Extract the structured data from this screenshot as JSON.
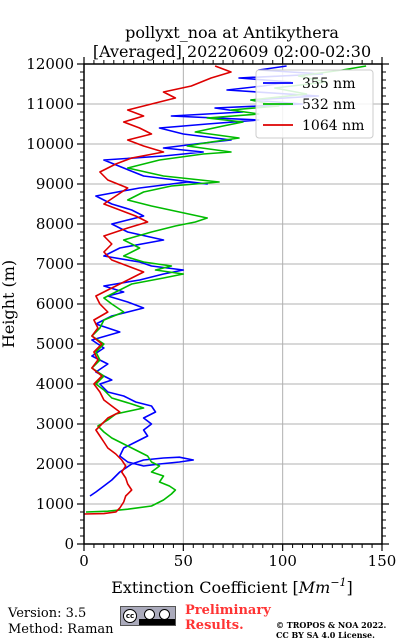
{
  "chart_data": {
    "type": "line",
    "title": [
      "pollyxt_noa at Antikythera",
      "[Averaged] 20220609 02:00-02:30"
    ],
    "xlabel": "Extinction Coefficient [Mm⁻¹]",
    "xlabel_main": "Extinction Coefficient [",
    "xlabel_unit": "Mm",
    "xlabel_exp": "−1",
    "xlabel_close": "]",
    "ylabel": "Height (m)",
    "xlim": [
      0,
      150
    ],
    "ylim": [
      0,
      12000
    ],
    "xticks": [
      0,
      50,
      100,
      150
    ],
    "yticks": [
      0,
      1000,
      2000,
      3000,
      4000,
      5000,
      6000,
      7000,
      8000,
      9000,
      10000,
      11000,
      12000
    ],
    "grid": true,
    "legend_position": "top-right",
    "series": [
      {
        "name": "355 nm",
        "color": "#0000ff",
        "points": [
          [
            3,
            1200
          ],
          [
            6,
            1300
          ],
          [
            10,
            1450
          ],
          [
            14,
            1600
          ],
          [
            18,
            1800
          ],
          [
            24,
            2000
          ],
          [
            30,
            2100
          ],
          [
            40,
            2150
          ],
          [
            48,
            2170
          ],
          [
            55,
            2100
          ],
          [
            48,
            2050
          ],
          [
            38,
            2000
          ],
          [
            30,
            1950
          ],
          [
            22,
            2050
          ],
          [
            18,
            2200
          ],
          [
            20,
            2400
          ],
          [
            26,
            2550
          ],
          [
            32,
            2700
          ],
          [
            30,
            2850
          ],
          [
            34,
            3000
          ],
          [
            30,
            3150
          ],
          [
            36,
            3300
          ],
          [
            34,
            3450
          ],
          [
            26,
            3550
          ],
          [
            20,
            3700
          ],
          [
            12,
            3800
          ],
          [
            8,
            4000
          ],
          [
            14,
            4100
          ],
          [
            6,
            4300
          ],
          [
            12,
            4500
          ],
          [
            4,
            4700
          ],
          [
            10,
            4900
          ],
          [
            4,
            5100
          ],
          [
            18,
            5300
          ],
          [
            6,
            5500
          ],
          [
            14,
            5700
          ],
          [
            30,
            5900
          ],
          [
            22,
            6050
          ],
          [
            12,
            6200
          ],
          [
            20,
            6300
          ],
          [
            10,
            6450
          ],
          [
            28,
            6600
          ],
          [
            40,
            6750
          ],
          [
            50,
            6850
          ],
          [
            34,
            6950
          ],
          [
            28,
            7050
          ],
          [
            10,
            7200
          ],
          [
            18,
            7400
          ],
          [
            40,
            7600
          ],
          [
            22,
            7800
          ],
          [
            14,
            8000
          ],
          [
            30,
            8200
          ],
          [
            24,
            8350
          ],
          [
            14,
            8500
          ],
          [
            6,
            8700
          ],
          [
            28,
            8900
          ],
          [
            52,
            9050
          ],
          [
            62,
            9000
          ],
          [
            30,
            9200
          ],
          [
            20,
            9400
          ],
          [
            10,
            9600
          ],
          [
            40,
            9700
          ],
          [
            60,
            9800
          ],
          [
            40,
            9900
          ],
          [
            56,
            10000
          ],
          [
            74,
            10100
          ],
          [
            50,
            10250
          ],
          [
            38,
            10400
          ],
          [
            62,
            10500
          ],
          [
            88,
            10600
          ],
          [
            44,
            10700
          ],
          [
            80,
            10800
          ],
          [
            66,
            10900
          ],
          [
            110,
            11000
          ],
          [
            84,
            11100
          ],
          [
            118,
            11200
          ],
          [
            72,
            11350
          ],
          [
            90,
            11450
          ],
          [
            104,
            11550
          ],
          [
            78,
            11650
          ],
          [
            120,
            11750
          ],
          [
            88,
            11850
          ],
          [
            102,
            11950
          ]
        ]
      },
      {
        "name": "532 nm",
        "color": "#00bb00",
        "points": [
          [
            1,
            800
          ],
          [
            12,
            820
          ],
          [
            22,
            870
          ],
          [
            34,
            950
          ],
          [
            40,
            1100
          ],
          [
            44,
            1250
          ],
          [
            46,
            1350
          ],
          [
            43,
            1450
          ],
          [
            38,
            1550
          ],
          [
            40,
            1700
          ],
          [
            34,
            1800
          ],
          [
            38,
            1950
          ],
          [
            34,
            2050
          ],
          [
            32,
            2200
          ],
          [
            26,
            2350
          ],
          [
            20,
            2500
          ],
          [
            14,
            2650
          ],
          [
            10,
            2800
          ],
          [
            7,
            2950
          ],
          [
            12,
            3100
          ],
          [
            16,
            3250
          ],
          [
            30,
            3400
          ],
          [
            24,
            3500
          ],
          [
            14,
            3650
          ],
          [
            10,
            3850
          ],
          [
            6,
            4000
          ],
          [
            10,
            4200
          ],
          [
            4,
            4400
          ],
          [
            8,
            4600
          ],
          [
            6,
            4800
          ],
          [
            10,
            5000
          ],
          [
            4,
            5200
          ],
          [
            8,
            5400
          ],
          [
            10,
            5600
          ],
          [
            20,
            5800
          ],
          [
            14,
            6000
          ],
          [
            10,
            6150
          ],
          [
            16,
            6300
          ],
          [
            24,
            6500
          ],
          [
            40,
            6650
          ],
          [
            50,
            6750
          ],
          [
            36,
            6850
          ],
          [
            44,
            6950
          ],
          [
            30,
            7050
          ],
          [
            20,
            7200
          ],
          [
            28,
            7400
          ],
          [
            20,
            7600
          ],
          [
            34,
            7800
          ],
          [
            46,
            7950
          ],
          [
            56,
            8050
          ],
          [
            62,
            8150
          ],
          [
            48,
            8300
          ],
          [
            34,
            8450
          ],
          [
            22,
            8600
          ],
          [
            30,
            8800
          ],
          [
            44,
            8950
          ],
          [
            68,
            9050
          ],
          [
            40,
            9200
          ],
          [
            22,
            9400
          ],
          [
            38,
            9600
          ],
          [
            60,
            9750
          ],
          [
            74,
            9800
          ],
          [
            52,
            9950
          ],
          [
            64,
            10050
          ],
          [
            78,
            10150
          ],
          [
            56,
            10300
          ],
          [
            70,
            10450
          ],
          [
            80,
            10550
          ],
          [
            62,
            10650
          ],
          [
            88,
            10750
          ],
          [
            74,
            10850
          ],
          [
            98,
            10950
          ],
          [
            84,
            11100
          ],
          [
            112,
            11250
          ],
          [
            96,
            11400
          ],
          [
            122,
            11550
          ],
          [
            108,
            11700
          ],
          [
            130,
            11850
          ],
          [
            142,
            11950
          ]
        ]
      },
      {
        "name": "1064 nm",
        "color": "#dd0000",
        "points": [
          [
            0,
            750
          ],
          [
            10,
            760
          ],
          [
            16,
            800
          ],
          [
            18,
            900
          ],
          [
            20,
            1050
          ],
          [
            21,
            1200
          ],
          [
            24,
            1350
          ],
          [
            22,
            1500
          ],
          [
            21,
            1650
          ],
          [
            19,
            1800
          ],
          [
            21,
            1950
          ],
          [
            19,
            2100
          ],
          [
            16,
            2250
          ],
          [
            12,
            2400
          ],
          [
            10,
            2550
          ],
          [
            8,
            2700
          ],
          [
            6,
            2850
          ],
          [
            9,
            3000
          ],
          [
            12,
            3150
          ],
          [
            18,
            3300
          ],
          [
            14,
            3450
          ],
          [
            10,
            3600
          ],
          [
            8,
            3800
          ],
          [
            5,
            4000
          ],
          [
            9,
            4200
          ],
          [
            4,
            4400
          ],
          [
            7,
            4600
          ],
          [
            5,
            4800
          ],
          [
            9,
            5000
          ],
          [
            4,
            5200
          ],
          [
            7,
            5400
          ],
          [
            5,
            5600
          ],
          [
            12,
            5800
          ],
          [
            8,
            6000
          ],
          [
            6,
            6200
          ],
          [
            12,
            6350
          ],
          [
            18,
            6500
          ],
          [
            24,
            6650
          ],
          [
            30,
            6800
          ],
          [
            22,
            6950
          ],
          [
            14,
            7100
          ],
          [
            10,
            7300
          ],
          [
            14,
            7500
          ],
          [
            10,
            7700
          ],
          [
            22,
            7900
          ],
          [
            32,
            8050
          ],
          [
            26,
            8200
          ],
          [
            18,
            8350
          ],
          [
            10,
            8500
          ],
          [
            16,
            8700
          ],
          [
            22,
            8900
          ],
          [
            12,
            9100
          ],
          [
            8,
            9300
          ],
          [
            16,
            9500
          ],
          [
            24,
            9650
          ],
          [
            40,
            9800
          ],
          [
            30,
            9950
          ],
          [
            22,
            10100
          ],
          [
            34,
            10250
          ],
          [
            28,
            10400
          ],
          [
            20,
            10550
          ],
          [
            30,
            10700
          ],
          [
            22,
            10850
          ],
          [
            34,
            11000
          ],
          [
            46,
            11150
          ],
          [
            40,
            11300
          ],
          [
            54,
            11450
          ],
          [
            64,
            11650
          ],
          [
            74,
            11800
          ],
          [
            66,
            11950
          ]
        ]
      }
    ]
  },
  "footer": {
    "version": "Version: 3.5",
    "method": "Method: Raman",
    "preliminary_line1": "Preliminary",
    "preliminary_line2": "Results.",
    "copyright_line1": "© TROPOS & NOA 2022.",
    "copyright_line2": "CC BY SA 4.0 License."
  },
  "cc_badge": {
    "cc": "cc",
    "by": "BY",
    "sa": "SA"
  }
}
